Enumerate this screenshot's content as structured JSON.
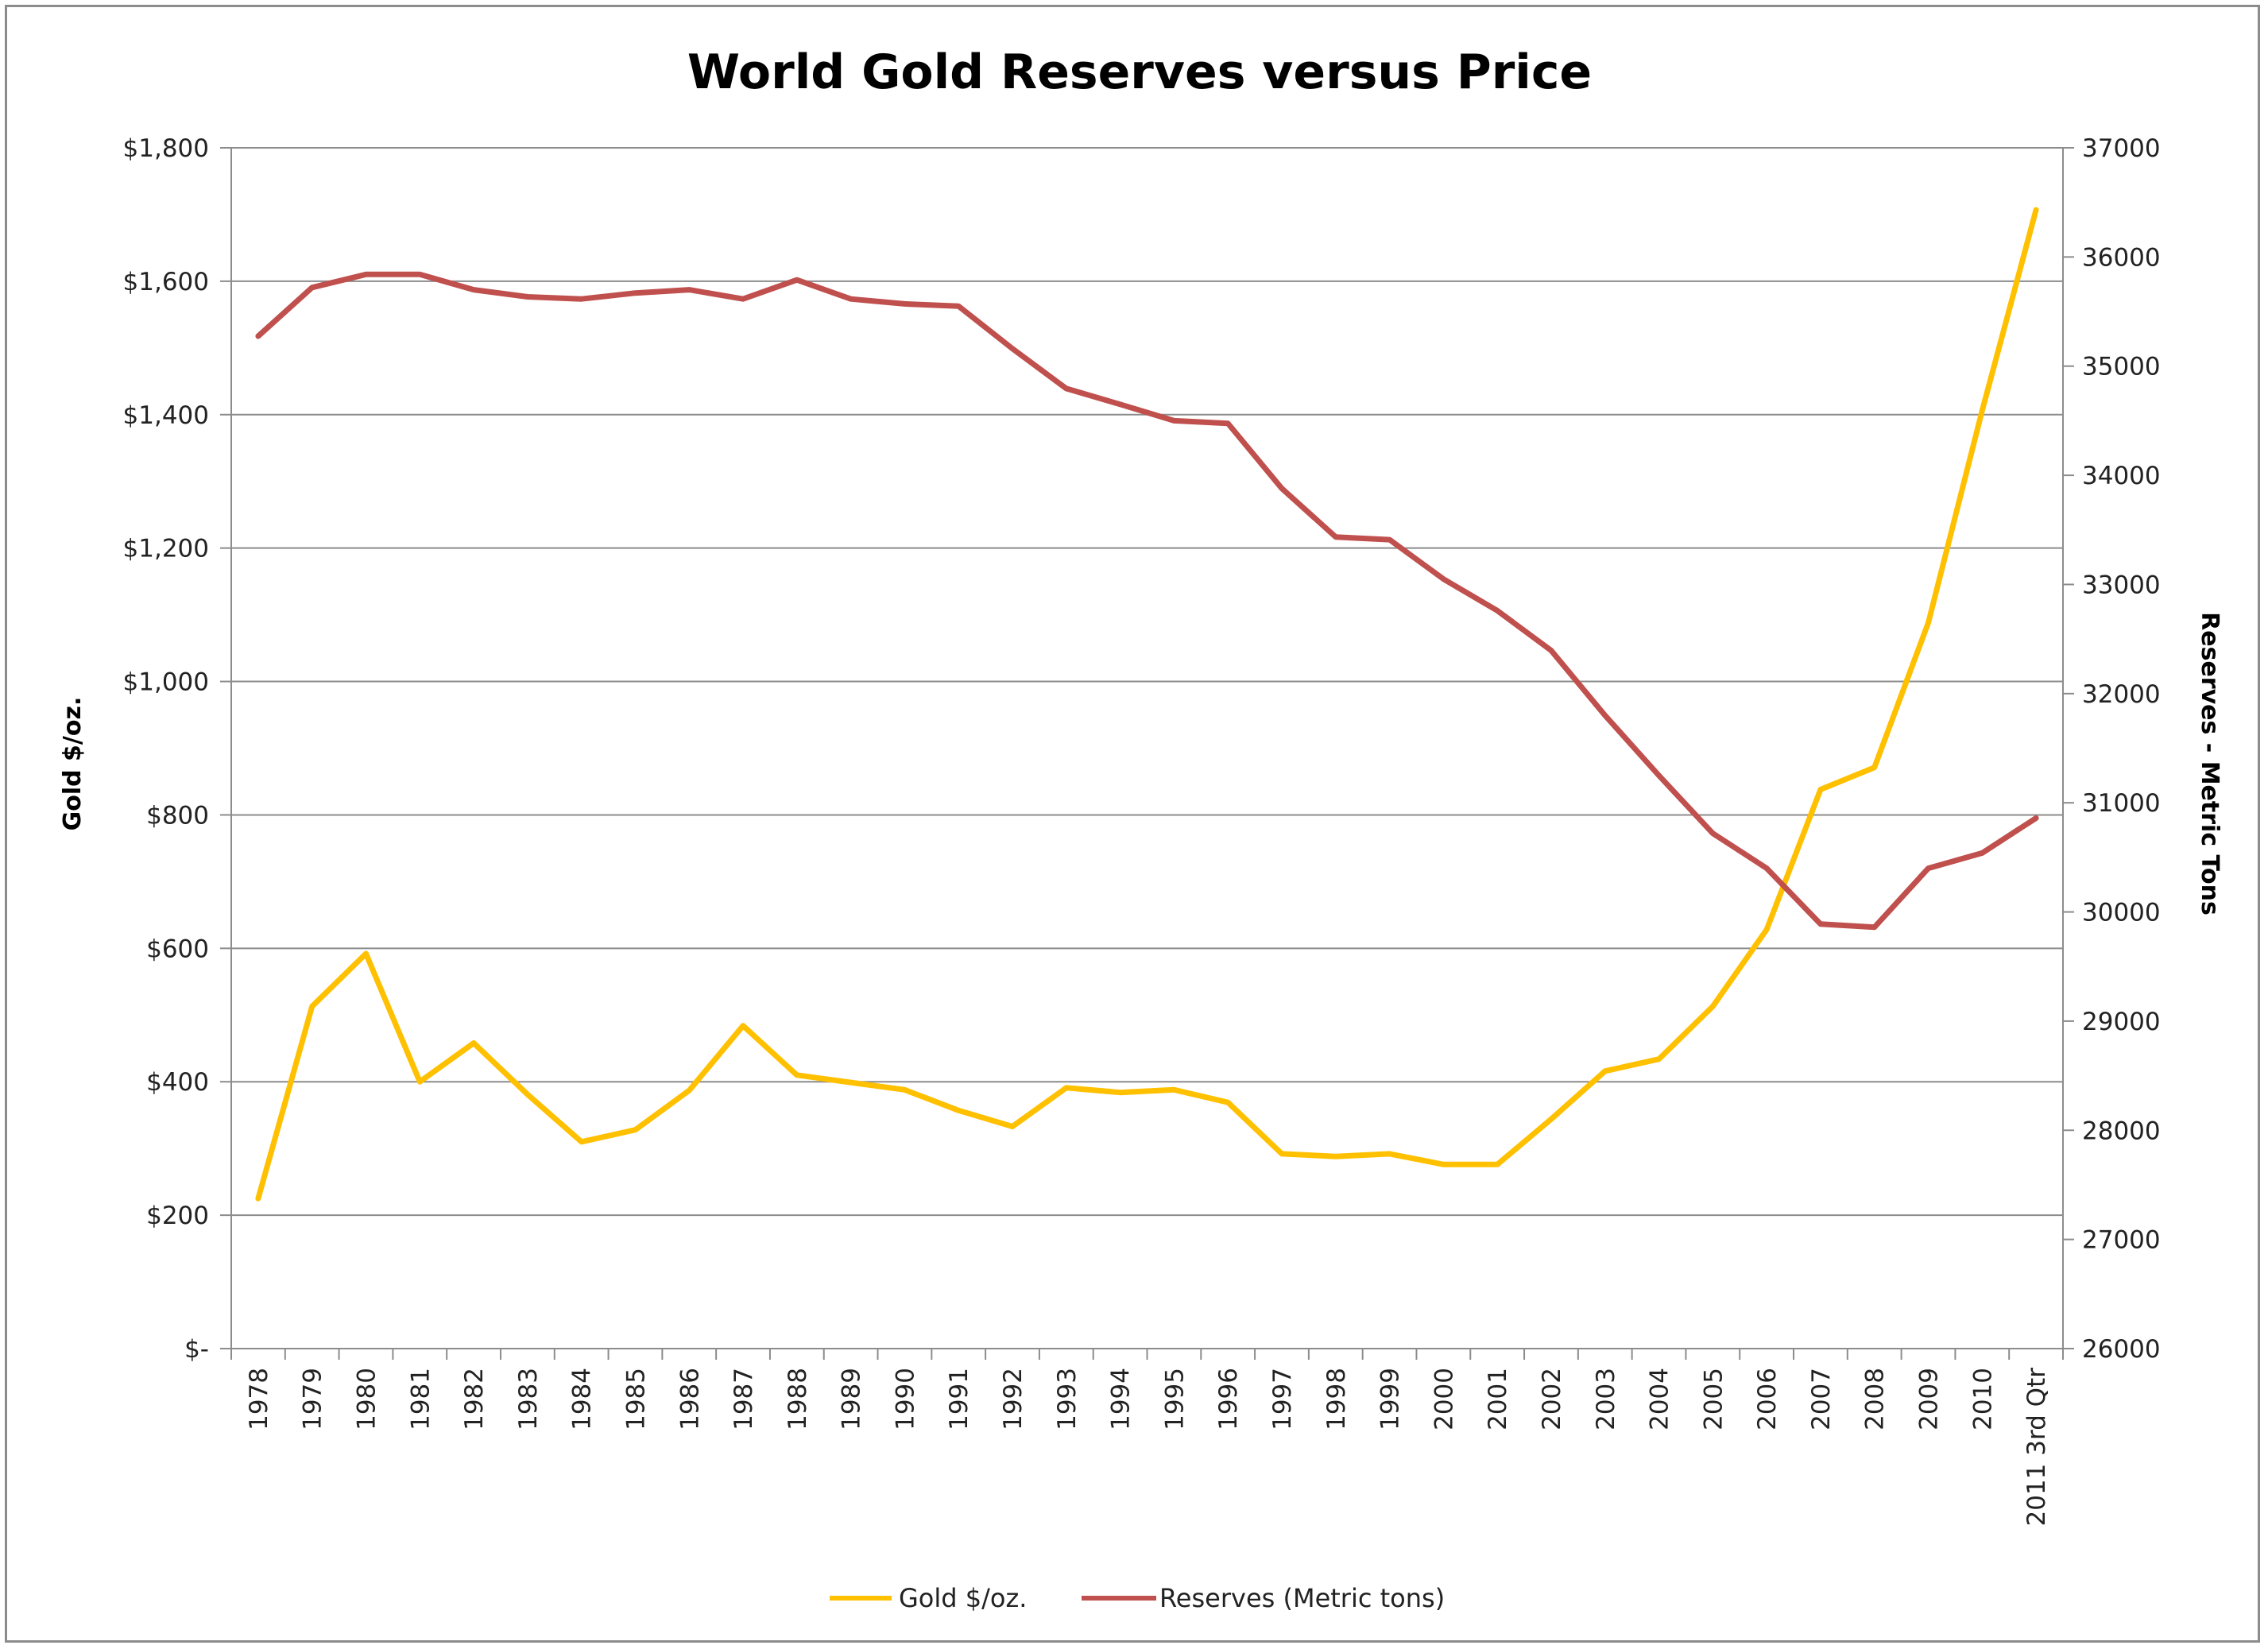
{
  "chart_data": {
    "type": "line",
    "title": "World Gold Reserves versus Price",
    "categories": [
      "1978",
      "1979",
      "1980",
      "1981",
      "1982",
      "1983",
      "1984",
      "1985",
      "1986",
      "1987",
      "1988",
      "1989",
      "1990",
      "1991",
      "1992",
      "1993",
      "1994",
      "1995",
      "1996",
      "1997",
      "1998",
      "1999",
      "2000",
      "2001",
      "2002",
      "2003",
      "2004",
      "2005",
      "2006",
      "2007",
      "2008",
      "2009",
      "2010",
      "2011 3rd Qtr"
    ],
    "y_left": {
      "label": "Gold $/oz.",
      "range": [
        0,
        1800
      ],
      "ticks": [
        {
          "value": 0,
          "label": "$-"
        },
        {
          "value": 200,
          "label": "$200"
        },
        {
          "value": 400,
          "label": "$400"
        },
        {
          "value": 600,
          "label": "$600"
        },
        {
          "value": 800,
          "label": "$800"
        },
        {
          "value": 1000,
          "label": "$1,000"
        },
        {
          "value": 1200,
          "label": "$1,200"
        },
        {
          "value": 1400,
          "label": "$1,400"
        },
        {
          "value": 1600,
          "label": "$1,600"
        },
        {
          "value": 1800,
          "label": "$1,800"
        }
      ]
    },
    "y_right": {
      "label": "Reserves - Metric Tons",
      "range": [
        26000,
        37000
      ],
      "ticks": [
        {
          "value": 26000,
          "label": "26000"
        },
        {
          "value": 27000,
          "label": "27000"
        },
        {
          "value": 28000,
          "label": "28000"
        },
        {
          "value": 29000,
          "label": "29000"
        },
        {
          "value": 30000,
          "label": "30000"
        },
        {
          "value": 31000,
          "label": "31000"
        },
        {
          "value": 32000,
          "label": "32000"
        },
        {
          "value": 33000,
          "label": "33000"
        },
        {
          "value": 34000,
          "label": "34000"
        },
        {
          "value": 35000,
          "label": "35000"
        },
        {
          "value": 36000,
          "label": "36000"
        },
        {
          "value": 37000,
          "label": "37000"
        }
      ]
    },
    "grid": true,
    "legend_position": "bottom",
    "series": [
      {
        "name": "Gold $/oz.",
        "axis": "left",
        "color": "#ffc000",
        "values": [
          225,
          513,
          592,
          400,
          458,
          381,
          310,
          328,
          387,
          484,
          410,
          399,
          388,
          357,
          333,
          391,
          384,
          388,
          369,
          292,
          288,
          292,
          276,
          276,
          344,
          416,
          434,
          513,
          628,
          838,
          871,
          1088,
          1406,
          1707
        ]
      },
      {
        "name": "Reserves (Metric tons)",
        "axis": "right",
        "color": "#c0504d",
        "values": [
          35275,
          35720,
          35840,
          35840,
          35700,
          35635,
          35615,
          35670,
          35700,
          35615,
          35790,
          35615,
          35570,
          35550,
          35160,
          34795,
          34650,
          34500,
          34475,
          33880,
          33435,
          33410,
          33050,
          32760,
          32395,
          31800,
          31250,
          30720,
          30400,
          29890,
          29860,
          30400,
          30540,
          30860
        ]
      }
    ]
  }
}
